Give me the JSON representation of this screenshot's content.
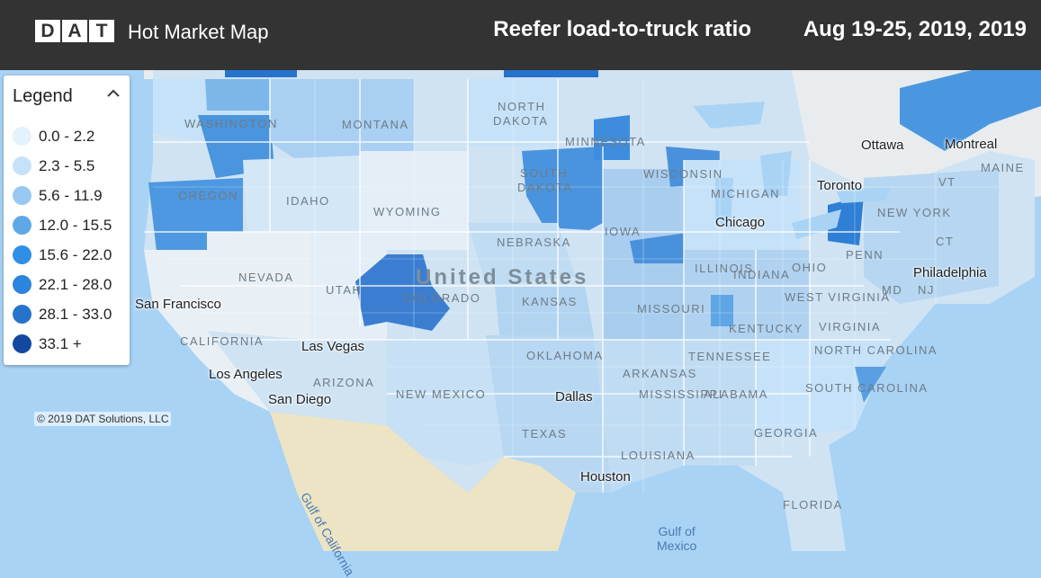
{
  "header": {
    "logo_letters": [
      "D",
      "A",
      "T"
    ],
    "app_title": "Hot Market Map",
    "metric": "Reefer load-to-truck ratio",
    "date_range": "Aug 19-25, 2019, 2019"
  },
  "legend": {
    "title": "Legend",
    "items": [
      {
        "label": "0.0 - 2.2",
        "color": "#e3f2fd"
      },
      {
        "label": "2.3 - 5.5",
        "color": "#c6e2f9"
      },
      {
        "label": "5.6 - 11.9",
        "color": "#97c8f2"
      },
      {
        "label": "12.0 - 15.5",
        "color": "#5fa8e8"
      },
      {
        "label": "15.6 - 22.0",
        "color": "#2f8fe6"
      },
      {
        "label": "22.1 - 28.0",
        "color": "#2b84de"
      },
      {
        "label": "28.1 - 33.0",
        "color": "#2673cc"
      },
      {
        "label": "33.1 +",
        "color": "#1248a0"
      }
    ]
  },
  "map": {
    "copyright": "© 2019 DAT Solutions, LLC",
    "country_label": "United States",
    "states": [
      "WASHINGTON",
      "MONTANA",
      "NORTH DAKOTA",
      "MINNESOTA",
      "OREGON",
      "IDAHO",
      "SOUTH DAKOTA",
      "WISCONSIN",
      "WYOMING",
      "MICHIGAN",
      "IOWA",
      "NEBRASKA",
      "NEVADA",
      "UTAH",
      "COLORADO",
      "KANSAS",
      "MISSOURI",
      "ILLINOIS",
      "INDIANA",
      "OHIO",
      "KENTUCKY",
      "CALIFORNIA",
      "ARIZONA",
      "NEW MEXICO",
      "OKLAHOMA",
      "ARKANSAS",
      "TENNESSEE",
      "TEXAS",
      "MISSISSIPPI",
      "ALABAMA",
      "GEORGIA",
      "LOUISIANA",
      "FLORIDA",
      "NEW YORK",
      "PENN",
      "WEST VIRGINIA",
      "VIRGINIA",
      "NORTH CAROLINA",
      "SOUTH CAROLINA",
      "MAINE",
      "NJ",
      "MD",
      "VT",
      "CT"
    ],
    "cities": [
      "San Francisco",
      "Las Vegas",
      "Los Angeles",
      "San Diego",
      "Chicago",
      "Philadelphia",
      "Dallas",
      "Houston",
      "Toronto",
      "Ottawa",
      "Montreal"
    ],
    "water": [
      "Gulf of California",
      "Gulf of Mexico"
    ]
  }
}
